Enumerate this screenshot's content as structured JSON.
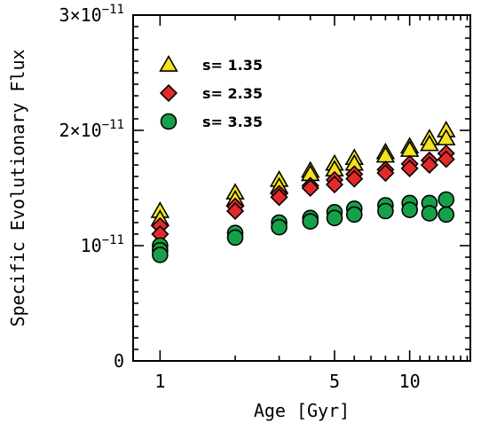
{
  "chart_data": {
    "type": "scatter",
    "title": "",
    "xlabel": "Age [Gyr]",
    "ylabel": "Specific Evolutionary Flux",
    "xscale": "log",
    "xlim": [
      0.78,
      17.5
    ],
    "ylim": [
      0,
      3e-11
    ],
    "x_ticks": [
      {
        "value": 1,
        "label": "1"
      },
      {
        "value": 5,
        "label": "5"
      },
      {
        "value": 10,
        "label": "10"
      }
    ],
    "y_ticks": [
      {
        "value": 0,
        "label": "0",
        "base": "0",
        "exp": ""
      },
      {
        "value": 1e-11,
        "label": "10^-11",
        "base": "10",
        "exp": "−11"
      },
      {
        "value": 2e-11,
        "label": "2×10^-11",
        "base": "2×10",
        "exp": "−11"
      },
      {
        "value": 3e-11,
        "label": "3×10^-11",
        "base": "3×10",
        "exp": "−11"
      }
    ],
    "legend": {
      "placement": "top-left",
      "entries": [
        {
          "label": "s= 1.35",
          "marker": "triangle",
          "color": "#f2e21f"
        },
        {
          "label": "s= 2.35",
          "marker": "diamond",
          "color": "#e32a2a"
        },
        {
          "label": "s= 3.35",
          "marker": "circle",
          "color": "#16a04a"
        }
      ]
    },
    "series": [
      {
        "marker": "triangle",
        "color": "#f2e21f",
        "x": [
          1,
          1,
          2,
          2,
          3,
          3,
          4,
          4,
          5,
          5,
          6,
          6,
          8,
          8,
          10,
          10,
          12,
          12,
          14,
          14
        ],
        "y": [
          1.3e-11,
          1.23e-11,
          1.46e-11,
          1.4e-11,
          1.57e-11,
          1.51e-11,
          1.65e-11,
          1.62e-11,
          1.71e-11,
          1.66e-11,
          1.76e-11,
          1.71e-11,
          1.81e-11,
          1.78e-11,
          1.86e-11,
          1.83e-11,
          1.93e-11,
          1.88e-11,
          2e-11,
          1.93e-11
        ]
      },
      {
        "marker": "diamond",
        "color": "#e32a2a",
        "x": [
          1,
          1,
          2,
          2,
          3,
          3,
          4,
          4,
          5,
          5,
          6,
          6,
          8,
          8,
          10,
          10,
          12,
          12,
          14,
          14
        ],
        "y": [
          1.17e-11,
          1.1e-11,
          1.34e-11,
          1.3e-11,
          1.45e-11,
          1.42e-11,
          1.52e-11,
          1.5e-11,
          1.57e-11,
          1.53e-11,
          1.62e-11,
          1.58e-11,
          1.66e-11,
          1.63e-11,
          1.71e-11,
          1.67e-11,
          1.74e-11,
          1.7e-11,
          1.8e-11,
          1.75e-11
        ]
      },
      {
        "marker": "circle",
        "color": "#16a04a",
        "x": [
          1,
          1,
          1,
          2,
          2,
          3,
          3,
          4,
          4,
          5,
          5,
          6,
          6,
          8,
          8,
          10,
          10,
          12,
          12,
          14,
          14
        ],
        "y": [
          1e-11,
          9.6e-12,
          9.2e-12,
          1.11e-11,
          1.07e-11,
          1.2e-11,
          1.16e-11,
          1.24e-11,
          1.21e-11,
          1.29e-11,
          1.24e-11,
          1.32e-11,
          1.27e-11,
          1.35e-11,
          1.3e-11,
          1.37e-11,
          1.31e-11,
          1.37e-11,
          1.28e-11,
          1.4e-11,
          1.27e-11
        ]
      }
    ]
  }
}
